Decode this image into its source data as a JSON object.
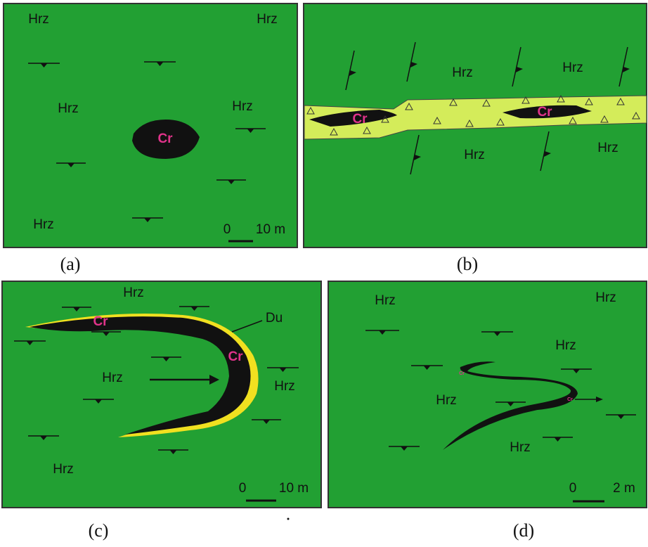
{
  "panels": [
    {
      "caption": "(a)",
      "labels": [
        "Hrz",
        "Hrz",
        "Hrz",
        "Hrz",
        "Hrz",
        "Cr"
      ],
      "scale": {
        "zero": "0",
        "length": "10 m"
      }
    },
    {
      "caption": "(b)",
      "labels": [
        "Hrz",
        "Hrz",
        "Hrz",
        "Hrz",
        "Cr",
        "Cr"
      ]
    },
    {
      "caption": "(c)",
      "labels": [
        "Hrz",
        "Cr",
        "Du",
        "Cr",
        "Hrz",
        "Hrz",
        "Hrz"
      ],
      "scale": {
        "zero": "0",
        "length": "10 m"
      }
    },
    {
      "caption": "(d)",
      "labels": [
        "Hrz",
        "Hrz",
        "Hrz",
        "Hrz",
        "Hrz",
        "Cr",
        "Cr"
      ],
      "scale": {
        "zero": "0",
        "length": "2 m"
      }
    }
  ]
}
